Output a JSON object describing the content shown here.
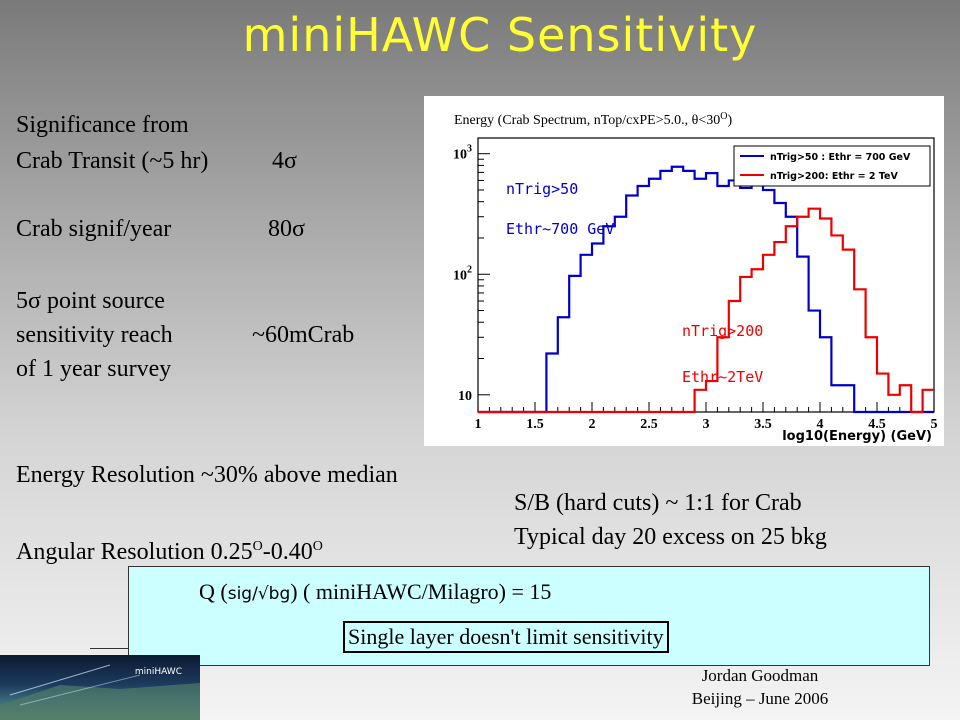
{
  "title": "miniHAWC Sensitivity",
  "left_text": {
    "line1": "Significance from",
    "line2_a": "Crab Transit (~5 hr)",
    "line2_b": "4σ",
    "line3_a": "Crab signif/year",
    "line3_b": "80σ",
    "line4": "5σ point source",
    "line5_a": "sensitivity reach",
    "line5_b": "~60mCrab",
    "line6": "of 1 year survey",
    "energy_res": "Energy Resolution   ~30% above median",
    "angular_res_prefix": "Angular Resolution  0.25",
    "angular_res_mid": "-0.40",
    "degree_mark": "O"
  },
  "right_text": {
    "sb": "S/B (hard cuts) ~ 1:1 for Crab",
    "typical": "Typical day 20 excess on 25 bkg"
  },
  "box": {
    "q_prefix": "Q (",
    "q_sans": "sig/√bg",
    "q_suffix": ") ( miniHAWC/Milagro) = 15",
    "single_layer": "Single layer doesn't limit sensitivity"
  },
  "footer": {
    "author": "Jordan Goodman",
    "location": "Beijing – June 2006",
    "logo_label": "miniHAWC"
  },
  "chart_data": {
    "type": "line",
    "title": "Energy  (Crab Spectrum, nTop/cxPE>5.0., θ<30",
    "title_deg": "O",
    "title_end": ")",
    "xlabel": "log10(Energy) (GeV)",
    "xlim": [
      1,
      5
    ],
    "ylim_log": [
      10,
      1000
    ],
    "y_scale": "log",
    "x_ticks": [
      "1",
      "1.5",
      "2",
      "2.5",
      "3",
      "3.5",
      "4",
      "4.5",
      "5"
    ],
    "y_ticks": [
      {
        "base": "10",
        "exp": "3"
      },
      {
        "base": "10",
        "exp": "2"
      },
      {
        "base": "10",
        "exp": ""
      }
    ],
    "legend": [
      "nTrig>50 : Ethr = 700 GeV",
      "nTrig>200: Ethr = 2 TeV"
    ],
    "legend_placement": "top-right",
    "annotations": {
      "blue_a": "nTrig>50",
      "blue_b": "Ethr~700 GeV",
      "red_a": "nTrig>200",
      "red_b": "Ethr~2TeV"
    },
    "bin_edges": [
      1.0,
      1.1,
      1.2,
      1.3,
      1.4,
      1.5,
      1.6,
      1.7,
      1.8,
      1.9,
      2.0,
      2.1,
      2.2,
      2.3,
      2.4,
      2.5,
      2.6,
      2.7,
      2.8,
      2.9,
      3.0,
      3.1,
      3.2,
      3.3,
      3.4,
      3.5,
      3.6,
      3.7,
      3.8,
      3.9,
      4.0,
      4.1,
      4.2,
      4.3,
      4.4,
      4.5,
      4.6,
      4.7,
      4.8,
      4.9,
      5.0
    ],
    "series": [
      {
        "name": "nTrig>50 : Ethr = 700 GeV",
        "color": "#0000cc",
        "values": [
          0,
          0,
          0,
          0,
          0,
          0,
          22,
          44,
          97,
          145,
          180,
          250,
          300,
          450,
          540,
          620,
          720,
          780,
          720,
          620,
          690,
          540,
          600,
          520,
          620,
          500,
          390,
          300,
          140,
          50,
          30,
          12,
          12,
          0,
          0,
          0,
          0,
          0,
          0,
          0
        ]
      },
      {
        "name": "nTrig>200: Ethr = 2 TeV",
        "color": "#ee0000",
        "values": [
          0,
          0,
          0,
          0,
          0,
          0,
          0,
          0,
          0,
          0,
          0,
          0,
          0,
          0,
          0,
          0,
          0,
          0,
          0,
          11,
          13,
          30,
          60,
          95,
          110,
          145,
          185,
          250,
          300,
          350,
          290,
          210,
          160,
          75,
          30,
          15,
          10,
          12,
          0,
          11
        ]
      }
    ]
  }
}
